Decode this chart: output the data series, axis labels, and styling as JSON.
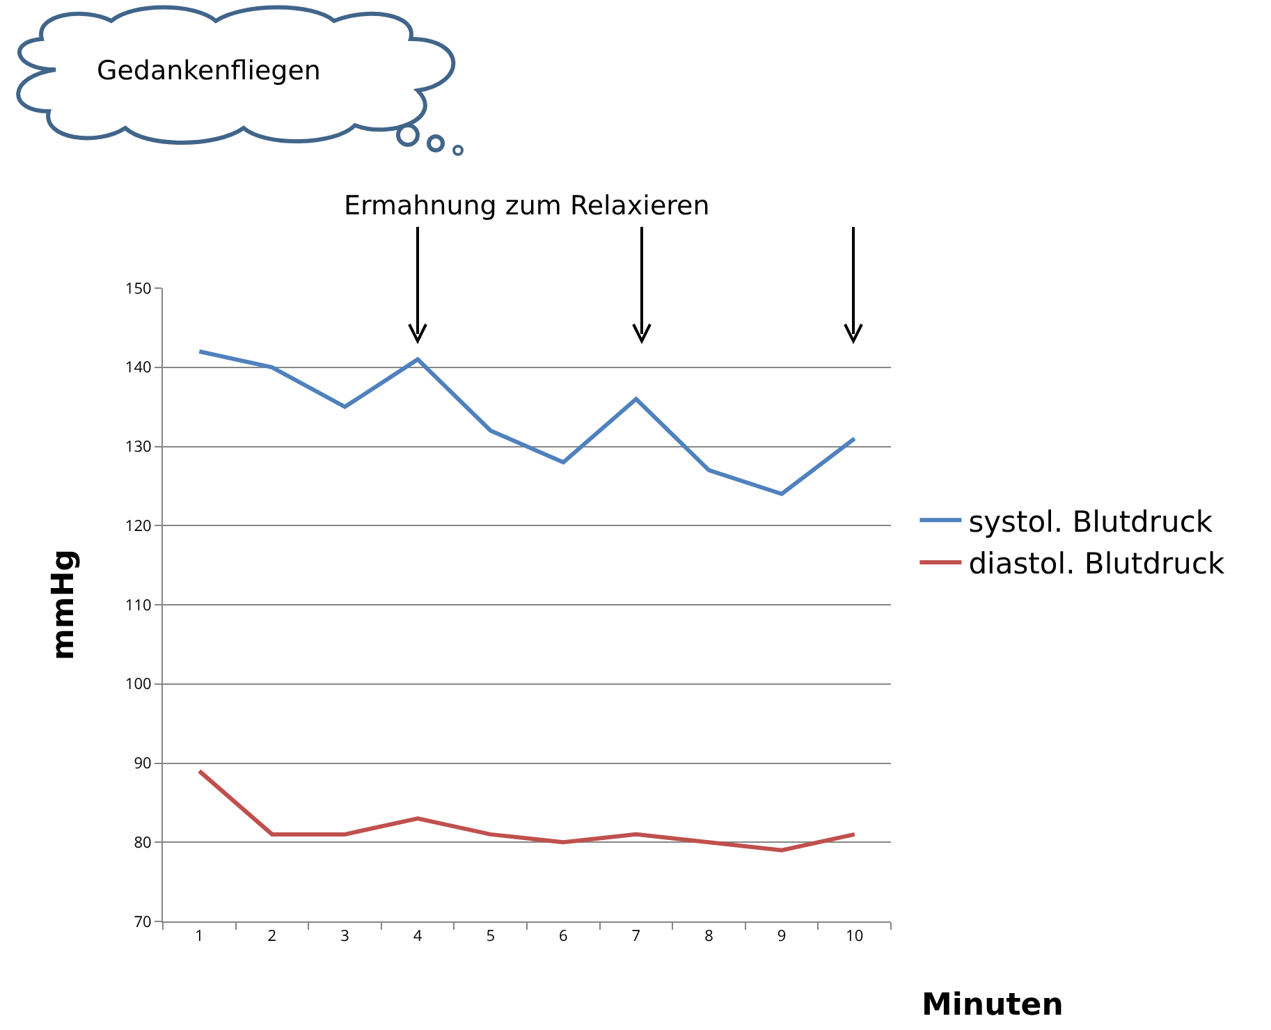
{
  "chart_data": {
    "type": "line",
    "categories": [
      "1",
      "2",
      "3",
      "4",
      "5",
      "6",
      "7",
      "8",
      "9",
      "10"
    ],
    "series": [
      {
        "name": "systol. Blutdruck",
        "color": "#4f81bd",
        "values": [
          142,
          140,
          135,
          141,
          132,
          128,
          136,
          127,
          124,
          131
        ]
      },
      {
        "name": "diastol. Blutdruck",
        "color": "#c0504d",
        "values": [
          89,
          81,
          81,
          83,
          81,
          80,
          81,
          80,
          79,
          81
        ]
      }
    ],
    "xlabel": "Minuten",
    "ylabel": "mmHg",
    "ylim": [
      70,
      150
    ],
    "yticks": [
      70,
      80,
      90,
      100,
      110,
      120,
      130,
      140,
      150
    ],
    "grid": "y",
    "legend": "right",
    "marker": "none",
    "line_style": "solid",
    "annotations": [
      "Gedankenfliegen",
      "Ermahnung zum Relaxieren"
    ]
  }
}
